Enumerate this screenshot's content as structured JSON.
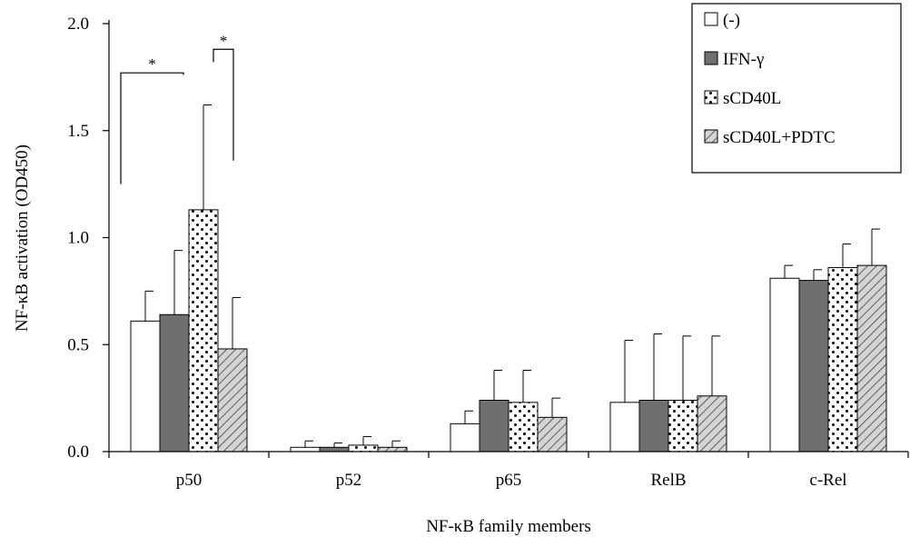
{
  "chart_data": {
    "type": "bar",
    "xlabel": "NF-κB family members",
    "ylabel": "NF-κB activation (OD450)",
    "ylim": [
      0,
      2.0
    ],
    "yticks": [
      "0.0",
      "0.5",
      "1.0",
      "1.5",
      "2.0"
    ],
    "categories": [
      "p50",
      "p52",
      "p65",
      "RelB",
      "c-Rel"
    ],
    "legend_position": "top-right",
    "series": [
      {
        "name": "(-)",
        "pattern": "white",
        "values": [
          0.61,
          0.02,
          0.13,
          0.23,
          0.81
        ],
        "errors": [
          0.14,
          0.03,
          0.06,
          0.29,
          0.06
        ]
      },
      {
        "name": "IFN-γ",
        "pattern": "gray",
        "values": [
          0.64,
          0.02,
          0.24,
          0.24,
          0.8
        ],
        "errors": [
          0.3,
          0.02,
          0.14,
          0.31,
          0.05
        ]
      },
      {
        "name": "sCD40L",
        "pattern": "dots",
        "values": [
          1.13,
          0.03,
          0.23,
          0.24,
          0.86
        ],
        "errors": [
          0.49,
          0.04,
          0.15,
          0.3,
          0.11
        ]
      },
      {
        "name": "sCD40L+PDTC",
        "pattern": "hatch",
        "values": [
          0.48,
          0.02,
          0.16,
          0.26,
          0.87
        ],
        "errors": [
          0.24,
          0.03,
          0.09,
          0.28,
          0.17
        ]
      }
    ],
    "annotations": [
      {
        "text": "*",
        "category": "p50",
        "from_series": 0,
        "to_series": 2,
        "bracket_top": 1.77,
        "left_leg_bottom": 1.25,
        "right_leg_bottom": 1.76
      },
      {
        "text": "*",
        "category": "p50",
        "from_series": 2,
        "to_series": 3,
        "bracket_top": 1.88,
        "left_leg_bottom": 1.82,
        "right_leg_bottom": 1.36
      }
    ]
  }
}
